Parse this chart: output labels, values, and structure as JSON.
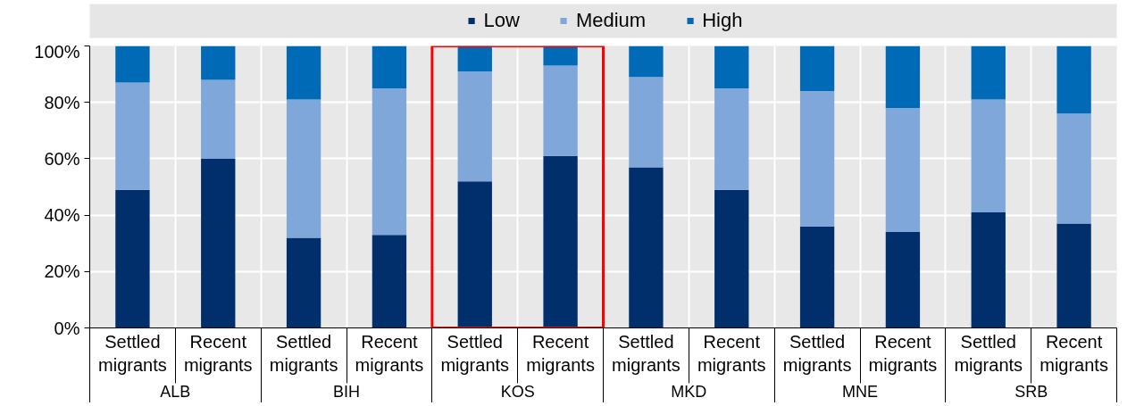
{
  "chart_data": {
    "type": "bar",
    "stacked": true,
    "categories": [
      "Settled migrants",
      "Recent migrants",
      "Settled migrants",
      "Recent migrants",
      "Settled migrants",
      "Recent migrants",
      "Settled migrants",
      "Recent migrants",
      "Settled migrants",
      "Recent migrants",
      "Settled migrants",
      "Recent migrants"
    ],
    "annotations": [
      "ALB",
      "BIH",
      "KOS",
      "MKD",
      "MNE",
      "SRB"
    ],
    "series": [
      {
        "name": "Low",
        "color": "#002f6c",
        "values": [
          49,
          60,
          32,
          33,
          52,
          61,
          57,
          49,
          36,
          34,
          41,
          37
        ]
      },
      {
        "name": "Medium",
        "color": "#7fa7d9",
        "values": [
          38,
          28,
          49,
          52,
          39,
          32,
          32,
          36,
          48,
          44,
          40,
          39
        ]
      },
      {
        "name": "High",
        "color": "#006ab7",
        "values": [
          13,
          12,
          19,
          15,
          9,
          7,
          11,
          15,
          16,
          22,
          19,
          24
        ]
      }
    ],
    "ylim": [
      0,
      100
    ],
    "yticks": [
      {
        "value": 0,
        "label": "0%"
      },
      {
        "value": 20,
        "label": "20%"
      },
      {
        "value": 40,
        "label": "40%"
      },
      {
        "value": 60,
        "label": "60%"
      },
      {
        "value": 80,
        "label": "80%"
      },
      {
        "value": 100,
        "label": "100%"
      }
    ],
    "grid": true,
    "legend": "top"
  }
}
